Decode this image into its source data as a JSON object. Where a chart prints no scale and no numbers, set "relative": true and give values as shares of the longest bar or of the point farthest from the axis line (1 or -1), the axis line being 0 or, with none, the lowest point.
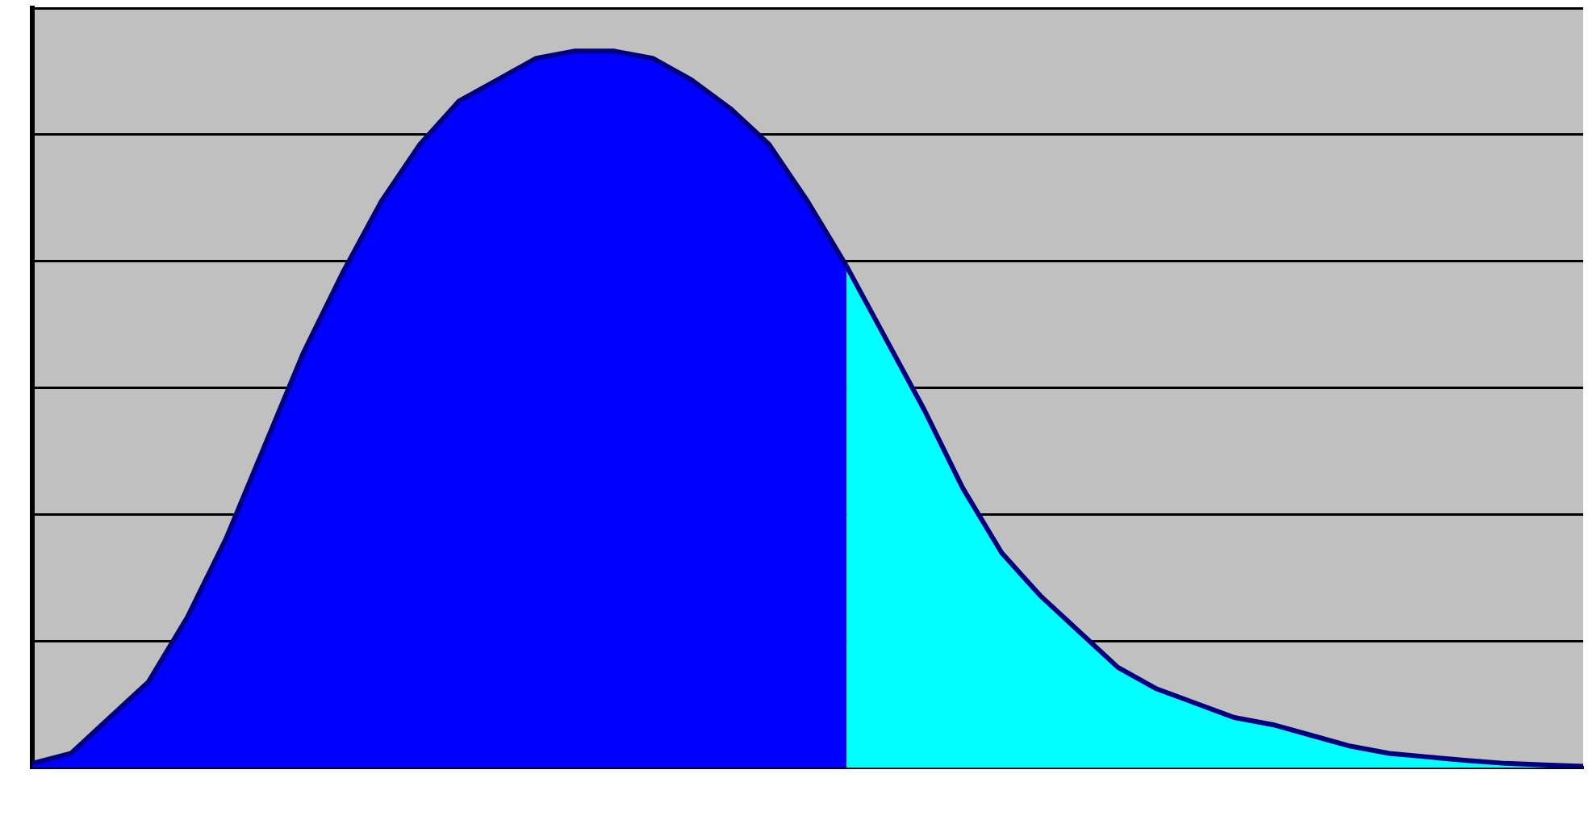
{
  "chart_data": {
    "type": "area",
    "relative": true,
    "grid": "y",
    "legend": false,
    "categories": [
      null,
      null,
      null,
      null,
      null,
      null,
      null,
      null,
      null,
      null,
      null,
      null,
      null,
      null,
      null,
      null,
      null,
      null,
      null,
      null,
      null,
      null,
      null,
      null,
      null,
      null,
      null,
      null,
      null,
      null,
      null,
      null,
      null,
      null,
      null,
      null,
      null,
      null,
      null,
      null,
      null
    ],
    "series": [
      {
        "color": "#0000ff",
        "values": [
          0.006,
          0.02,
          0.07,
          0.12,
          0.21,
          0.32,
          0.45,
          0.58,
          0.69,
          0.79,
          0.87,
          0.93,
          0.96,
          0.99,
          1.0,
          1.0,
          0.99,
          0.96,
          0.92,
          0.87,
          0.79,
          0.7,
          null,
          null,
          null,
          null,
          null,
          null,
          null,
          null,
          null,
          null,
          null,
          null,
          null,
          null,
          null,
          null,
          null,
          null,
          null
        ]
      },
      {
        "color": "#00ffff",
        "values": [
          null,
          null,
          null,
          null,
          null,
          null,
          null,
          null,
          null,
          null,
          null,
          null,
          null,
          null,
          null,
          null,
          null,
          null,
          null,
          null,
          null,
          0.7,
          0.6,
          0.5,
          0.39,
          0.3,
          0.24,
          0.19,
          0.14,
          0.11,
          0.09,
          0.07,
          0.06,
          0.045,
          0.03,
          0.02,
          0.015,
          0.01,
          0.006,
          0.004,
          0.002
        ]
      }
    ]
  }
}
